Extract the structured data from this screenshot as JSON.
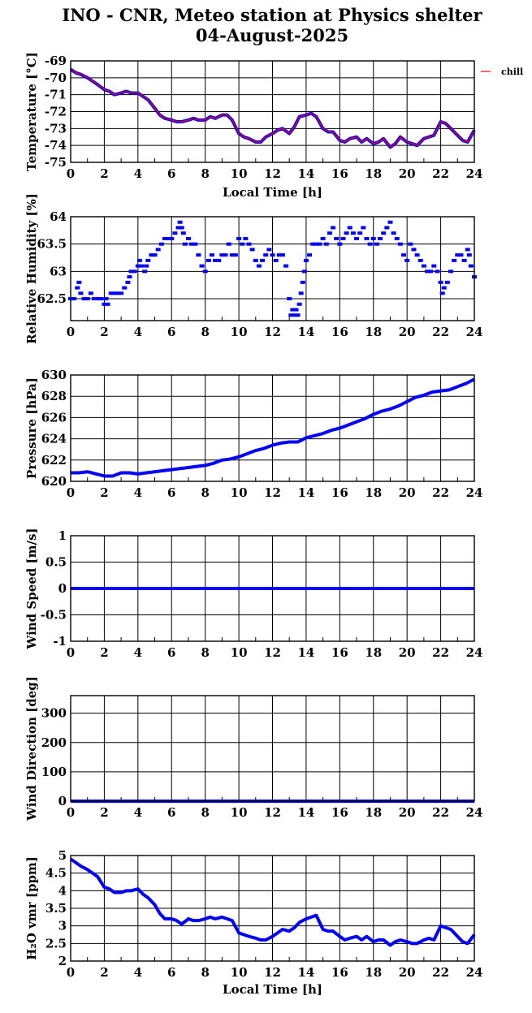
{
  "title": {
    "line1": "INO - CNR, Meteo station at Physics shelter",
    "line2": "04-August-2025"
  },
  "colors": {
    "primary": "#0000ff",
    "chill": "#ff0000",
    "grid": "#000000"
  },
  "chart_data": [
    {
      "type": "line",
      "ylabel": "Temperature [°C]",
      "xlabel": "Local Time [h]",
      "xlim": [
        0,
        24
      ],
      "ylim": [
        -75,
        -69
      ],
      "yticks": [
        "-75",
        "-74",
        "-73",
        "-72",
        "-71",
        "-70",
        "-69"
      ],
      "ytick_values": [
        -75,
        -74,
        -73,
        -72,
        -71,
        -70,
        -69
      ],
      "xticks": [
        "0",
        "2",
        "4",
        "6",
        "8",
        "10",
        "12",
        "14",
        "16",
        "18",
        "20",
        "22",
        "24"
      ],
      "grid": true,
      "legend": "right",
      "series": [
        {
          "color": "#0000ff",
          "x": [
            0,
            0.3,
            0.6,
            1,
            1.3,
            1.6,
            2,
            2.3,
            2.6,
            3,
            3.3,
            3.6,
            4,
            4.3,
            4.6,
            5,
            5.3,
            5.6,
            6,
            6.3,
            6.6,
            7,
            7.3,
            7.6,
            8,
            8.3,
            8.6,
            9,
            9.3,
            9.6,
            10,
            10.3,
            10.6,
            11,
            11.3,
            11.6,
            12,
            12.3,
            12.6,
            13,
            13.3,
            13.6,
            14,
            14.3,
            14.6,
            15,
            15.3,
            15.6,
            16,
            16.3,
            16.6,
            17,
            17.3,
            17.6,
            18,
            18.3,
            18.6,
            19,
            19.3,
            19.6,
            20,
            20.3,
            20.6,
            21,
            21.3,
            21.6,
            22,
            22.3,
            22.6,
            23,
            23.3,
            23.6,
            24
          ],
          "y": [
            -69.5,
            -69.7,
            -69.8,
            -70,
            -70.2,
            -70.4,
            -70.7,
            -70.8,
            -71,
            -70.9,
            -70.8,
            -70.9,
            -70.9,
            -71.1,
            -71.3,
            -71.8,
            -72.2,
            -72.4,
            -72.5,
            -72.6,
            -72.6,
            -72.5,
            -72.4,
            -72.5,
            -72.5,
            -72.3,
            -72.4,
            -72.2,
            -72.2,
            -72.5,
            -73.3,
            -73.5,
            -73.6,
            -73.8,
            -73.8,
            -73.5,
            -73.3,
            -73.1,
            -73,
            -73.3,
            -72.9,
            -72.3,
            -72.2,
            -72.1,
            -72.3,
            -73,
            -73.2,
            -73.2,
            -73.7,
            -73.8,
            -73.6,
            -73.5,
            -73.8,
            -73.6,
            -73.9,
            -73.8,
            -73.6,
            -74.1,
            -73.9,
            -73.5,
            -73.8,
            -73.9,
            -74,
            -73.6,
            -73.5,
            -73.4,
            -72.6,
            -72.7,
            -73,
            -73.4,
            -73.7,
            -73.8,
            -73.1
          ]
        },
        {
          "name": "chill",
          "color": "#ff0000",
          "same_as_series": 0
        }
      ]
    },
    {
      "type": "scatter",
      "ylabel": "Relative Humidity [%]",
      "xlim": [
        0,
        24
      ],
      "ylim": [
        62.1,
        64
      ],
      "yticks": [
        "62.5",
        "63",
        "63.5",
        "64"
      ],
      "ytick_values": [
        62.5,
        63,
        63.5,
        64
      ],
      "xticks": [
        "0",
        "2",
        "4",
        "6",
        "8",
        "10",
        "12",
        "14",
        "16",
        "18",
        "20",
        "22",
        "24"
      ],
      "grid": true,
      "series": [
        {
          "color": "#0000ff",
          "x": [
            0,
            0.2,
            0.4,
            0.5,
            0.6,
            0.8,
            1,
            1.2,
            1.4,
            1.6,
            1.8,
            2,
            2.1,
            2.2,
            2.4,
            2.6,
            2.8,
            3,
            3.2,
            3.4,
            3.5,
            3.6,
            3.8,
            4,
            4.1,
            4.2,
            4.4,
            4.5,
            4.6,
            4.8,
            5,
            5.2,
            5.4,
            5.6,
            5.8,
            6,
            6.2,
            6.4,
            6.5,
            6.6,
            6.7,
            6.8,
            7,
            7.2,
            7.4,
            7.6,
            7.8,
            8,
            8.2,
            8.4,
            8.6,
            8.8,
            9,
            9.2,
            9.4,
            9.6,
            9.8,
            10,
            10.2,
            10.4,
            10.6,
            10.8,
            11,
            11.2,
            11.4,
            11.6,
            11.8,
            12,
            12.2,
            12.4,
            12.6,
            12.8,
            13,
            13.1,
            13.2,
            13.3,
            13.4,
            13.5,
            13.6,
            13.7,
            13.8,
            13.9,
            14,
            14.2,
            14.4,
            14.6,
            14.8,
            15,
            15.2,
            15.4,
            15.6,
            15.8,
            16,
            16.2,
            16.4,
            16.6,
            16.8,
            17,
            17.2,
            17.4,
            17.6,
            17.8,
            18,
            18.2,
            18.4,
            18.6,
            18.8,
            19,
            19.2,
            19.4,
            19.6,
            19.8,
            20,
            20.2,
            20.4,
            20.6,
            20.8,
            21,
            21.2,
            21.4,
            21.6,
            21.8,
            22,
            22.1,
            22.2,
            22.4,
            22.6,
            22.8,
            23,
            23.2,
            23.4,
            23.6,
            23.7,
            23.8,
            24
          ],
          "y": [
            62.5,
            62.5,
            62.7,
            62.8,
            62.6,
            62.5,
            62.5,
            62.6,
            62.5,
            62.5,
            62.5,
            62.4,
            62.5,
            62.4,
            62.6,
            62.6,
            62.6,
            62.6,
            62.7,
            62.8,
            62.9,
            63,
            63,
            63.1,
            63.2,
            63.1,
            63,
            63.1,
            63.2,
            63.3,
            63.3,
            63.4,
            63.5,
            63.6,
            63.6,
            63.6,
            63.7,
            63.8,
            63.9,
            63.8,
            63.7,
            63.5,
            63.6,
            63.5,
            63.5,
            63.3,
            63.1,
            63,
            63.2,
            63.3,
            63.2,
            63.2,
            63.3,
            63.3,
            63.5,
            63.3,
            63.3,
            63.6,
            63.5,
            63.6,
            63.5,
            63.4,
            63.2,
            63.1,
            63.2,
            63.3,
            63.4,
            63.3,
            63.2,
            63.3,
            63.3,
            63.1,
            62.5,
            62.2,
            62.3,
            62.2,
            62.3,
            62.2,
            62.4,
            62.6,
            62.8,
            63,
            63.2,
            63.3,
            63.5,
            63.5,
            63.5,
            63.6,
            63.5,
            63.7,
            63.8,
            63.6,
            63.5,
            63.6,
            63.7,
            63.8,
            63.7,
            63.6,
            63.7,
            63.8,
            63.6,
            63.5,
            63.6,
            63.5,
            63.6,
            63.7,
            63.8,
            63.9,
            63.7,
            63.6,
            63.5,
            63.3,
            63.2,
            63.5,
            63.4,
            63.3,
            63.2,
            63.1,
            63,
            63,
            63.1,
            63,
            62.8,
            62.6,
            62.7,
            62.8,
            63,
            63.2,
            63.3,
            63.3,
            63.2,
            63.4,
            63.3,
            63.1,
            62.9
          ]
        }
      ]
    },
    {
      "type": "line",
      "ylabel": "Pressure [hPa]",
      "xlim": [
        0,
        24
      ],
      "ylim": [
        620,
        630
      ],
      "yticks": [
        "620",
        "622",
        "624",
        "626",
        "628",
        "630"
      ],
      "ytick_values": [
        620,
        622,
        624,
        626,
        628,
        630
      ],
      "xticks": [
        "0",
        "2",
        "4",
        "6",
        "8",
        "10",
        "12",
        "14",
        "16",
        "18",
        "20",
        "22",
        "24"
      ],
      "grid": true,
      "series": [
        {
          "color": "#0000ff",
          "x": [
            0,
            0.5,
            1,
            1.5,
            2,
            2.5,
            3,
            3.5,
            4,
            4.5,
            5,
            5.5,
            6,
            6.5,
            7,
            7.5,
            8,
            8.5,
            9,
            9.5,
            10,
            10.5,
            11,
            11.5,
            12,
            12.5,
            13,
            13.5,
            14,
            14.5,
            15,
            15.5,
            16,
            16.5,
            17,
            17.5,
            18,
            18.5,
            19,
            19.5,
            20,
            20.5,
            21,
            21.5,
            22,
            22.5,
            23,
            23.5,
            24
          ],
          "y": [
            620.8,
            620.8,
            620.9,
            620.7,
            620.5,
            620.5,
            620.8,
            620.8,
            620.7,
            620.8,
            620.9,
            621,
            621.1,
            621.2,
            621.3,
            621.4,
            621.5,
            621.7,
            622,
            622.1,
            622.3,
            622.6,
            622.9,
            623.1,
            623.4,
            623.6,
            623.7,
            623.7,
            624.1,
            624.3,
            624.5,
            624.8,
            625,
            625.3,
            625.6,
            625.9,
            626.3,
            626.6,
            626.8,
            627.1,
            627.5,
            627.9,
            628.1,
            628.4,
            628.5,
            628.6,
            628.9,
            629.2,
            629.6
          ]
        }
      ]
    },
    {
      "type": "line",
      "ylabel": "Wind Speed [m/s]",
      "xlim": [
        0,
        24
      ],
      "ylim": [
        -1,
        1
      ],
      "yticks": [
        "-1",
        "-0.5",
        "0",
        "0.5",
        "1"
      ],
      "ytick_values": [
        -1,
        -0.5,
        0,
        0.5,
        1
      ],
      "xticks": [
        "0",
        "2",
        "4",
        "6",
        "8",
        "10",
        "12",
        "14",
        "16",
        "18",
        "20",
        "22",
        "24"
      ],
      "grid": true,
      "series": [
        {
          "color": "#0000ff",
          "x": [
            0,
            24
          ],
          "y": [
            0,
            0
          ]
        }
      ]
    },
    {
      "type": "line",
      "ylabel": "Wind Direction [deg]",
      "xlim": [
        0,
        24
      ],
      "ylim": [
        0,
        360
      ],
      "yticks": [
        "0",
        "100",
        "200",
        "300"
      ],
      "ytick_values": [
        0,
        100,
        200,
        300
      ],
      "xticks": [
        "0",
        "2",
        "4",
        "6",
        "8",
        "10",
        "12",
        "14",
        "16",
        "18",
        "20",
        "22",
        "24"
      ],
      "grid": true,
      "series": [
        {
          "color": "#0000ff",
          "x": [
            0,
            24
          ],
          "y": [
            0,
            0
          ]
        }
      ]
    },
    {
      "type": "line",
      "ylabel": "H₂O vmr [ppm]",
      "xlabel": "Local Time [h]",
      "xlim": [
        0,
        24
      ],
      "ylim": [
        2,
        5
      ],
      "yticks": [
        "2",
        "2.5",
        "3",
        "3.5",
        "4",
        "4.5",
        "5"
      ],
      "ytick_values": [
        2,
        2.5,
        3,
        3.5,
        4,
        4.5,
        5
      ],
      "xticks": [
        "0",
        "2",
        "4",
        "6",
        "8",
        "10",
        "12",
        "14",
        "16",
        "18",
        "20",
        "22",
        "24"
      ],
      "grid": true,
      "series": [
        {
          "color": "#0000ff",
          "x": [
            0,
            0.3,
            0.6,
            1,
            1.3,
            1.6,
            2,
            2.3,
            2.6,
            3,
            3.3,
            3.6,
            4,
            4.3,
            4.6,
            5,
            5.3,
            5.6,
            6,
            6.3,
            6.6,
            7,
            7.3,
            7.6,
            8,
            8.3,
            8.6,
            9,
            9.3,
            9.6,
            10,
            10.3,
            10.6,
            11,
            11.3,
            11.6,
            12,
            12.3,
            12.6,
            13,
            13.3,
            13.6,
            14,
            14.3,
            14.6,
            15,
            15.3,
            15.6,
            16,
            16.3,
            16.6,
            17,
            17.3,
            17.6,
            18,
            18.3,
            18.6,
            19,
            19.3,
            19.6,
            20,
            20.3,
            20.6,
            21,
            21.3,
            21.6,
            22,
            22.3,
            22.6,
            23,
            23.3,
            23.6,
            24
          ],
          "y": [
            4.9,
            4.8,
            4.7,
            4.6,
            4.5,
            4.4,
            4.1,
            4.05,
            3.95,
            3.95,
            4,
            4,
            4.05,
            3.9,
            3.8,
            3.6,
            3.35,
            3.2,
            3.2,
            3.15,
            3.05,
            3.2,
            3.15,
            3.15,
            3.2,
            3.25,
            3.2,
            3.25,
            3.2,
            3.15,
            2.8,
            2.75,
            2.7,
            2.65,
            2.6,
            2.6,
            2.7,
            2.8,
            2.9,
            2.85,
            2.95,
            3.1,
            3.2,
            3.25,
            3.3,
            2.9,
            2.85,
            2.85,
            2.7,
            2.6,
            2.65,
            2.7,
            2.6,
            2.7,
            2.55,
            2.6,
            2.6,
            2.45,
            2.55,
            2.6,
            2.55,
            2.5,
            2.5,
            2.6,
            2.65,
            2.6,
            3,
            2.95,
            2.9,
            2.7,
            2.55,
            2.5,
            2.75
          ]
        }
      ]
    }
  ]
}
